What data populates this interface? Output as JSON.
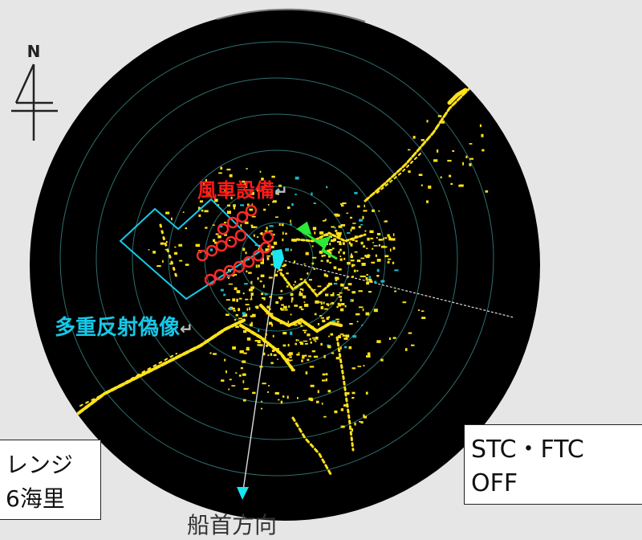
{
  "compass": {
    "north_label": "N",
    "icon": "north-arrow-icon"
  },
  "annotations": {
    "wind_turbines": "風車設備",
    "multiple_reflection": "多重反射偽像",
    "return_mark": "↵"
  },
  "range_panel": {
    "line1": "レンジ",
    "line2": "6海里"
  },
  "filter_panel": {
    "line1": "STC・FTC",
    "line2": "OFF"
  },
  "heading_label": "船首方向",
  "colors": {
    "scope": "#000000",
    "echo": "#ffe21a",
    "range_rings": "#2e6e6e",
    "turbine_marker": "#ff2a2a",
    "artifact_outline": "#18c8e8",
    "own_ship": "#19e6f2",
    "target_vector": "#2de838"
  },
  "wind_turbine_count": 17
}
